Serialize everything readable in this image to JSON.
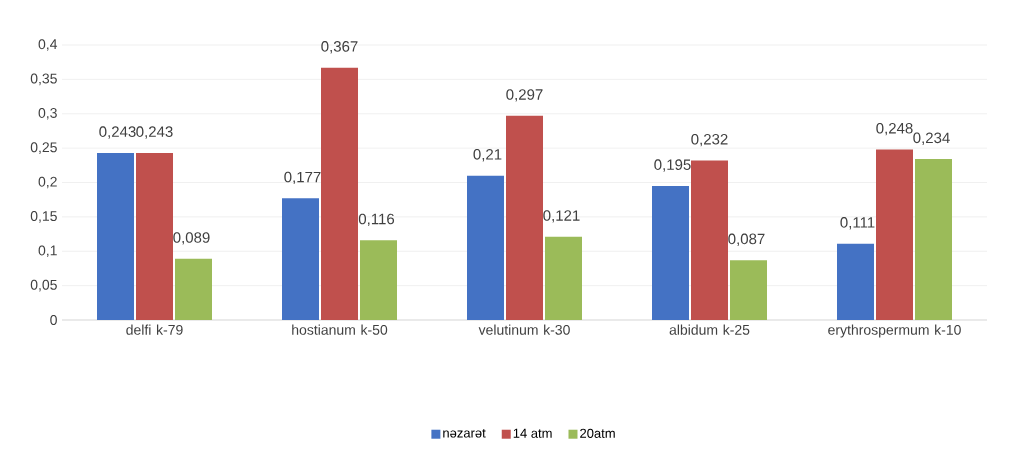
{
  "chart_data": {
    "type": "bar",
    "categories": [
      "delfi k-79",
      "hostianum k-50",
      "velutinum k-30",
      "albidum k-25",
      "erythrospermum k-10"
    ],
    "series": [
      {
        "name": "nəzarət",
        "color": "#4472c4",
        "values": [
          0.243,
          0.177,
          0.21,
          0.195,
          0.111
        ],
        "value_labels": [
          "0,243",
          "0,177",
          "0,21",
          "0,195",
          "0,111"
        ]
      },
      {
        "name": "14 atm",
        "color": "#c0504d",
        "values": [
          0.243,
          0.367,
          0.297,
          0.232,
          0.248
        ],
        "value_labels": [
          "0,243",
          "0,367",
          "0,297",
          "0,232",
          "0,248"
        ]
      },
      {
        "name": "20atm",
        "color": "#9bbb59",
        "values": [
          0.089,
          0.116,
          0.121,
          0.087,
          0.234
        ],
        "value_labels": [
          "0,089",
          "0,116",
          "0,121",
          "0,087",
          "0,234"
        ]
      }
    ],
    "ylim": [
      0,
      0.4
    ],
    "yticks": [
      {
        "value": 0,
        "label": "0"
      },
      {
        "value": 0.05,
        "label": "0,05"
      },
      {
        "value": 0.1,
        "label": "0,1"
      },
      {
        "value": 0.15,
        "label": "0,15"
      },
      {
        "value": 0.2,
        "label": "0,2"
      },
      {
        "value": 0.25,
        "label": "0,25"
      },
      {
        "value": 0.3,
        "label": "0,3"
      },
      {
        "value": 0.35,
        "label": "0,35"
      },
      {
        "value": 0.4,
        "label": "0,4"
      }
    ],
    "grid": "y",
    "legend": "bottom"
  }
}
